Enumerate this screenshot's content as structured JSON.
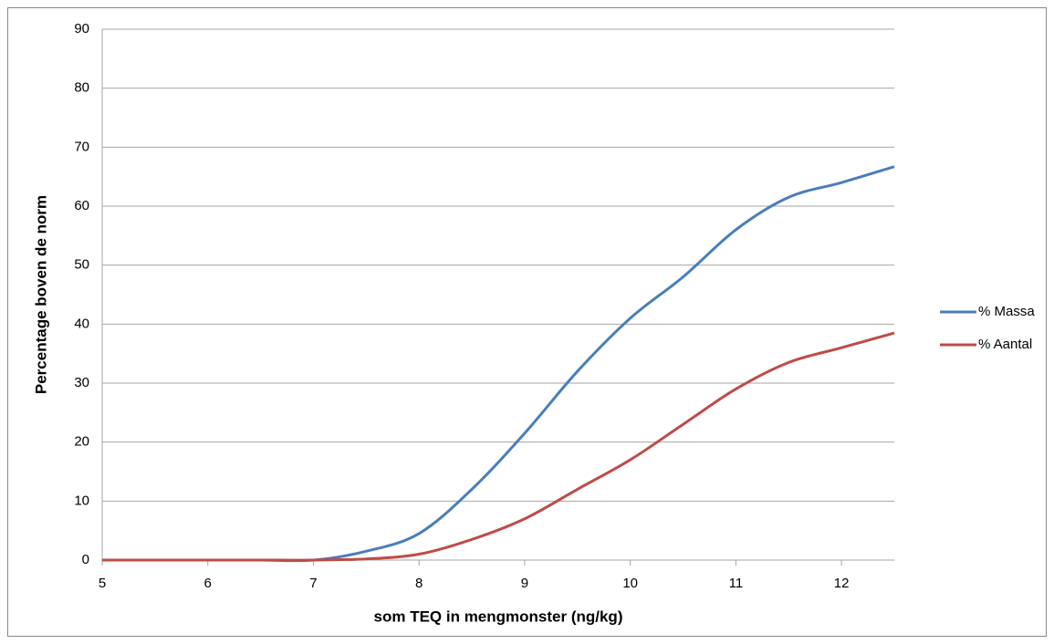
{
  "chart_data": {
    "type": "line",
    "x_label": "som TEQ in mengmonster (ng/kg)",
    "y_label": "Percentage boven de norm",
    "x": [
      5,
      5.5,
      6,
      6.5,
      7,
      7.5,
      8,
      8.5,
      9,
      9.5,
      10,
      10.5,
      11,
      11.5,
      12,
      12.5
    ],
    "series": [
      {
        "name": "% Massa",
        "color": "#4a7ebb",
        "values": [
          0,
          0,
          0,
          0,
          0,
          1.5,
          4.5,
          12,
          21.5,
          32,
          41,
          48,
          56,
          61.5,
          64,
          66.7
        ]
      },
      {
        "name": "% Aantal",
        "color": "#be4b48",
        "values": [
          0,
          0,
          0,
          0,
          0,
          0.2,
          1,
          3.5,
          7,
          12,
          17,
          23,
          29,
          33.5,
          36,
          38.5
        ]
      }
    ],
    "xlim": [
      5,
      12.5
    ],
    "xticks": [
      5,
      6,
      7,
      8,
      9,
      10,
      11,
      12
    ],
    "ylim": [
      0,
      90
    ],
    "yticks": [
      0,
      10,
      20,
      30,
      40,
      50,
      60,
      70,
      80,
      90
    ],
    "grid": true,
    "legend": "right"
  }
}
